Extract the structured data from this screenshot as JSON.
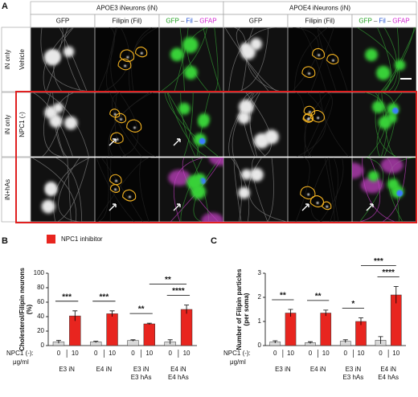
{
  "figure": {
    "panel_labels": [
      "A",
      "B",
      "C"
    ],
    "group_headers": [
      "APOE3 iNeurons (iN)",
      "APOE4 iNeurons (iN)"
    ],
    "column_labels": [
      "GFP",
      "Filipin (Fil)"
    ],
    "merge_label": [
      "GFP",
      "–",
      "Fil",
      "–",
      "GFAP"
    ],
    "row_labels": [
      {
        "outer": "iN only",
        "inner": "Vehicle"
      },
      {
        "outer": "iN only",
        "inner": "NPC1 (-)"
      },
      {
        "outer": "iN+hAs"
      }
    ]
  },
  "chart_data": [
    {
      "type": "bar",
      "y_label": [
        "Cholesterol/Filipin neurons",
        "(%)"
      ],
      "categories": [
        [
          "E3 iN"
        ],
        [
          "E4 iN"
        ],
        [
          "E3 iN",
          "E3 hAs"
        ],
        [
          "E4 iN",
          "E4 hAs"
        ]
      ],
      "dose_labels": [
        "0",
        "10"
      ],
      "x_prefix": "NPC1 (-):",
      "x_unit": "μg/ml",
      "series": [
        {
          "color": "#d9d9d9",
          "values": [
            5,
            5,
            7,
            5
          ],
          "errors": [
            2,
            1,
            1,
            3
          ]
        },
        {
          "name": "NPC1 inhibitor",
          "color": "#e8251f",
          "values": [
            41,
            44,
            30,
            50
          ],
          "errors": [
            7,
            4,
            1,
            6
          ]
        }
      ],
      "pair_significance": [
        "***",
        "***",
        "**",
        "****"
      ],
      "between_significance": "**",
      "ylim": [
        0,
        100
      ],
      "yticks": [
        0,
        20,
        40,
        60,
        80,
        100
      ]
    },
    {
      "type": "bar",
      "y_label": [
        "Number of Filipin particles",
        "(per soma)"
      ],
      "categories": [
        [
          "E3 iN"
        ],
        [
          "E4 iN"
        ],
        [
          "E3 iN",
          "E3 hAs"
        ],
        [
          "E4 iN",
          "E4 hAs"
        ]
      ],
      "dose_labels": [
        "0",
        "10"
      ],
      "x_prefix": "NPC1 (-):",
      "x_unit": "μg/ml",
      "series": [
        {
          "color": "#d9d9d9",
          "values": [
            0.15,
            0.12,
            0.18,
            0.22
          ],
          "errors": [
            0.05,
            0.04,
            0.06,
            0.15
          ]
        },
        {
          "name": "NPC1 inhibitor",
          "color": "#e8251f",
          "values": [
            1.35,
            1.35,
            1.0,
            2.1
          ],
          "errors": [
            0.15,
            0.12,
            0.15,
            0.35
          ]
        }
      ],
      "pair_significance": [
        "**",
        "**",
        "*",
        "****"
      ],
      "between_significance": "***",
      "ylim": [
        0,
        3
      ],
      "yticks": [
        0,
        1,
        2,
        3
      ]
    }
  ]
}
